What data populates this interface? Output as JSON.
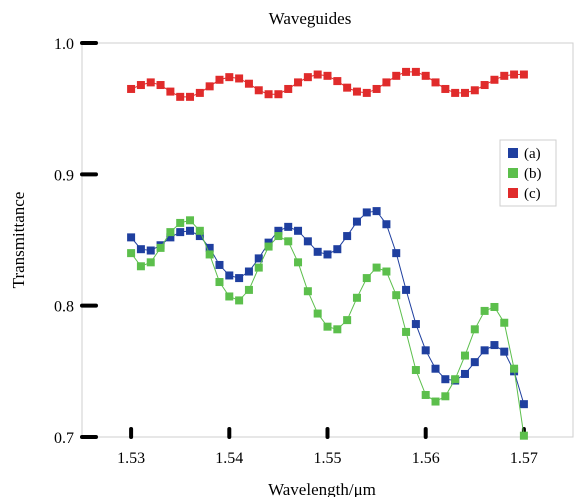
{
  "chart_data": {
    "type": "scatter",
    "title": "Waveguides",
    "xlabel": "Wavelength/μm",
    "ylabel": "Transmittance",
    "xlim": [
      1.525,
      1.575
    ],
    "ylim": [
      0.7,
      1.0
    ],
    "xticks": [
      1.53,
      1.54,
      1.55,
      1.56,
      1.57
    ],
    "xtick_labels": [
      "1.53",
      "1.54",
      "1.55",
      "1.56",
      "1.57"
    ],
    "yticks": [
      0.7,
      0.8,
      0.9,
      1.0
    ],
    "ytick_labels": [
      "0.7",
      "0.8",
      "0.9",
      "1.0"
    ],
    "grid": false,
    "legend_position": "right",
    "series": [
      {
        "name": "(a)",
        "color": "#1f3f9f",
        "x": [
          1.53,
          1.531,
          1.532,
          1.533,
          1.534,
          1.535,
          1.536,
          1.537,
          1.538,
          1.539,
          1.54,
          1.541,
          1.542,
          1.543,
          1.544,
          1.545,
          1.546,
          1.547,
          1.548,
          1.549,
          1.55,
          1.551,
          1.552,
          1.553,
          1.554,
          1.555,
          1.556,
          1.557,
          1.558,
          1.559,
          1.56,
          1.561,
          1.562,
          1.563,
          1.564,
          1.565,
          1.566,
          1.567,
          1.568,
          1.569,
          1.57
        ],
        "y": [
          0.852,
          0.843,
          0.842,
          0.846,
          0.852,
          0.856,
          0.857,
          0.853,
          0.844,
          0.831,
          0.823,
          0.821,
          0.826,
          0.836,
          0.848,
          0.857,
          0.86,
          0.857,
          0.849,
          0.841,
          0.839,
          0.843,
          0.853,
          0.864,
          0.871,
          0.872,
          0.862,
          0.84,
          0.812,
          0.786,
          0.766,
          0.752,
          0.744,
          0.743,
          0.748,
          0.757,
          0.766,
          0.77,
          0.765,
          0.75,
          0.725
        ]
      },
      {
        "name": "(b)",
        "color": "#5cbf4c",
        "x": [
          1.53,
          1.531,
          1.532,
          1.533,
          1.534,
          1.535,
          1.536,
          1.537,
          1.538,
          1.539,
          1.54,
          1.541,
          1.542,
          1.543,
          1.544,
          1.545,
          1.546,
          1.547,
          1.548,
          1.549,
          1.55,
          1.551,
          1.552,
          1.553,
          1.554,
          1.555,
          1.556,
          1.557,
          1.558,
          1.559,
          1.56,
          1.561,
          1.562,
          1.563,
          1.564,
          1.565,
          1.566,
          1.567,
          1.568,
          1.569,
          1.57
        ],
        "y": [
          0.84,
          0.83,
          0.833,
          0.844,
          0.856,
          0.863,
          0.865,
          0.857,
          0.839,
          0.818,
          0.807,
          0.804,
          0.812,
          0.829,
          0.845,
          0.853,
          0.849,
          0.833,
          0.811,
          0.794,
          0.784,
          0.782,
          0.789,
          0.806,
          0.821,
          0.829,
          0.826,
          0.808,
          0.78,
          0.751,
          0.732,
          0.727,
          0.731,
          0.744,
          0.762,
          0.782,
          0.796,
          0.799,
          0.787,
          0.752,
          0.701
        ]
      },
      {
        "name": "(c)",
        "color": "#e02b2b",
        "x": [
          1.53,
          1.531,
          1.532,
          1.533,
          1.534,
          1.535,
          1.536,
          1.537,
          1.538,
          1.539,
          1.54,
          1.541,
          1.542,
          1.543,
          1.544,
          1.545,
          1.546,
          1.547,
          1.548,
          1.549,
          1.55,
          1.551,
          1.552,
          1.553,
          1.554,
          1.555,
          1.556,
          1.557,
          1.558,
          1.559,
          1.56,
          1.561,
          1.562,
          1.563,
          1.564,
          1.565,
          1.566,
          1.567,
          1.568,
          1.569,
          1.57
        ],
        "y": [
          0.965,
          0.968,
          0.97,
          0.968,
          0.963,
          0.959,
          0.959,
          0.962,
          0.967,
          0.972,
          0.974,
          0.973,
          0.969,
          0.964,
          0.961,
          0.961,
          0.965,
          0.97,
          0.974,
          0.976,
          0.975,
          0.971,
          0.966,
          0.963,
          0.962,
          0.965,
          0.97,
          0.975,
          0.978,
          0.978,
          0.975,
          0.97,
          0.965,
          0.962,
          0.962,
          0.964,
          0.968,
          0.972,
          0.975,
          0.976,
          0.976
        ]
      }
    ]
  }
}
